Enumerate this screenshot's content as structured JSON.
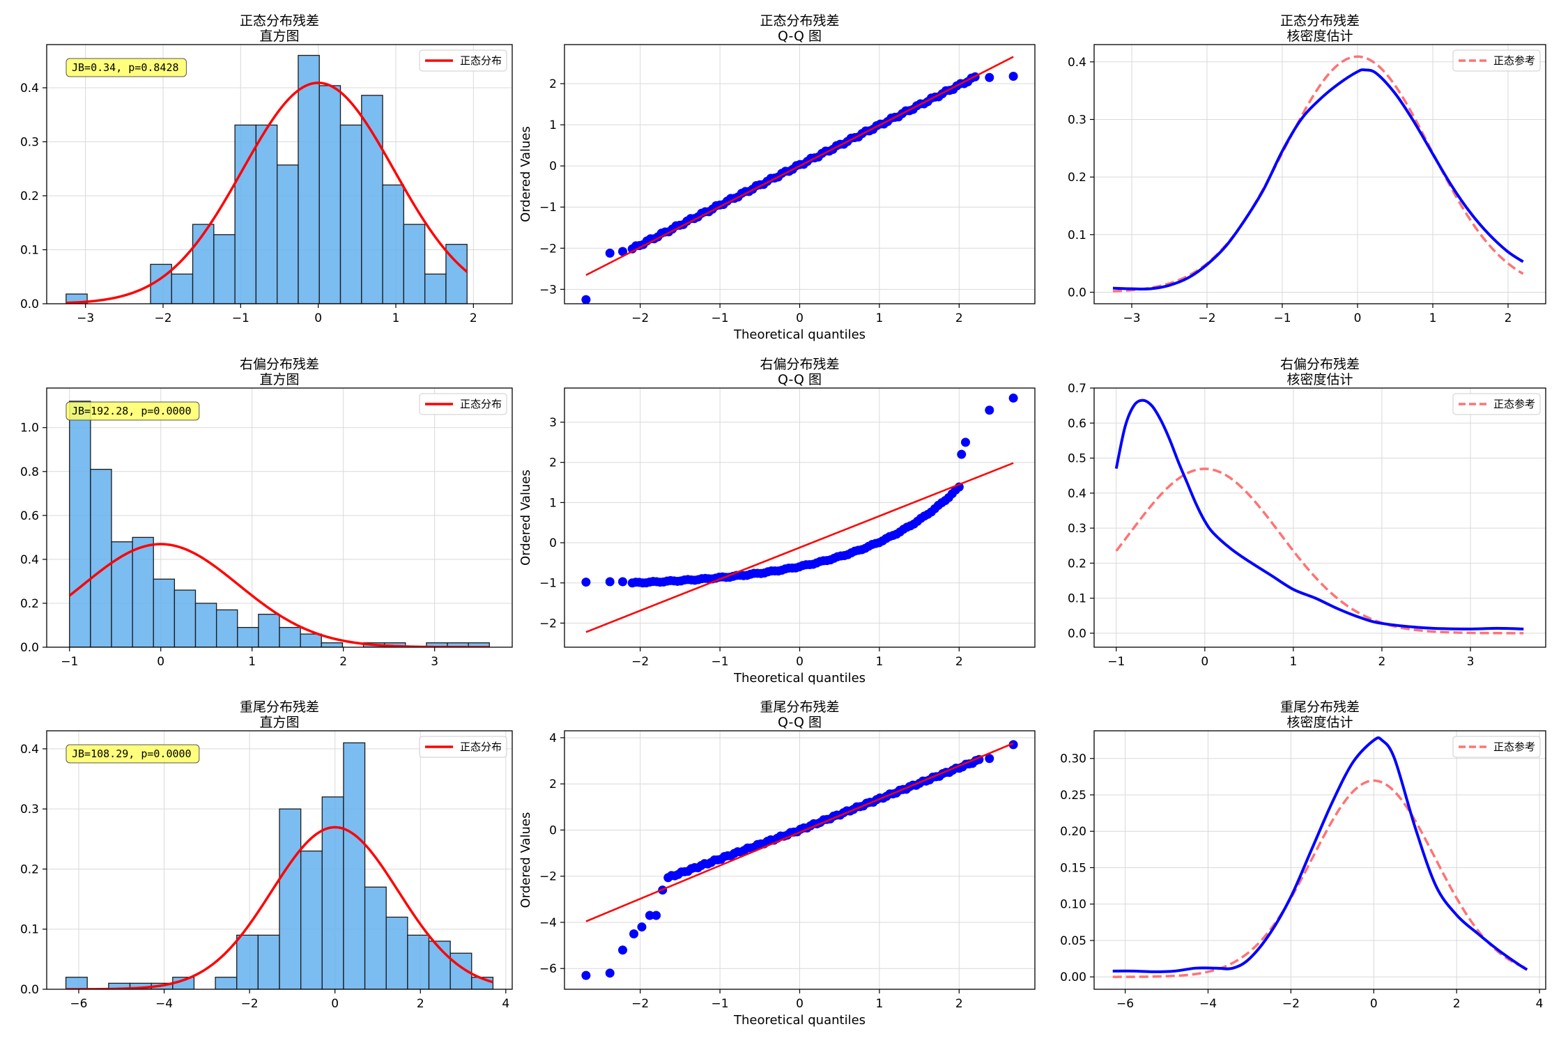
{
  "colors": {
    "hist_fill": "#64b0ee",
    "hist_edge": "#1a1a1a",
    "normal_curve": "#ff0000",
    "qq_points": "#0000ff",
    "qq_line": "#ff0000",
    "kde_line": "#0000ff",
    "normal_ref": "#ff7373",
    "annotation_fill": "#ffff66",
    "grid": "#d9d9d9"
  },
  "chart_data": [
    {
      "type": "bar",
      "title": "正态分布残差",
      "subtitle": "直方图",
      "xlim": [
        -3.5,
        2.5
      ],
      "ylim": [
        0,
        0.48
      ],
      "xticks": [
        -3,
        -2,
        -1,
        0,
        1,
        2
      ],
      "yticks": [
        0.0,
        0.1,
        0.2,
        0.3,
        0.4
      ],
      "bins": {
        "start": -3.25,
        "width": 0.272
      },
      "values": [
        0.018,
        0,
        0,
        0,
        0.073,
        0.055,
        0.147,
        0.128,
        0.331,
        0.331,
        0.257,
        0.46,
        0.404,
        0.331,
        0.386,
        0.22,
        0.147,
        0.055,
        0.11
      ],
      "curve": {
        "name": "正态分布",
        "mu": 0.0,
        "sigma": 0.975
      },
      "annotation": "JB=0.34, p=0.8428",
      "legend_position": "top-right",
      "grid": true
    },
    {
      "type": "scatter",
      "title": "正态分布残差",
      "subtitle": "Q-Q 图",
      "xlabel": "Theoretical quantiles",
      "ylabel": "Ordered Values",
      "xlim": [
        -2.95,
        2.95
      ],
      "ylim": [
        -3.35,
        2.95
      ],
      "xticks": [
        -2,
        -1,
        0,
        1,
        2
      ],
      "yticks": [
        -3,
        -2,
        -1,
        0,
        1,
        2
      ],
      "outliers": [
        [
          -2.68,
          -3.25
        ],
        [
          -2.38,
          -2.12
        ],
        [
          -2.22,
          -2.08
        ],
        [
          2.38,
          2.15
        ],
        [
          2.68,
          2.18
        ]
      ],
      "body": {
        "slope": 0.97,
        "intercept": 0.02,
        "x_range": [
          -2.1,
          2.2
        ]
      },
      "fit_line": {
        "slope": 0.99,
        "intercept": 0.0,
        "x_range": [
          -2.68,
          2.68
        ]
      },
      "grid": true
    },
    {
      "type": "line",
      "title": "正态分布残差",
      "subtitle": "核密度估计",
      "xlim": [
        -3.5,
        2.5
      ],
      "ylim": [
        -0.02,
        0.43
      ],
      "xticks": [
        -3,
        -2,
        -1,
        0,
        1,
        2
      ],
      "yticks": [
        0.0,
        0.1,
        0.2,
        0.3,
        0.4
      ],
      "kde": {
        "x": [
          -3.25,
          -3.0,
          -2.75,
          -2.5,
          -2.25,
          -2.0,
          -1.75,
          -1.5,
          -1.25,
          -1.0,
          -0.75,
          -0.5,
          -0.25,
          0.0,
          0.1,
          0.25,
          0.5,
          0.75,
          1.0,
          1.25,
          1.5,
          1.75,
          2.0,
          2.2
        ],
        "y": [
          0.007,
          0.006,
          0.006,
          0.012,
          0.025,
          0.048,
          0.08,
          0.125,
          0.178,
          0.245,
          0.3,
          0.335,
          0.362,
          0.383,
          0.386,
          0.38,
          0.345,
          0.296,
          0.24,
          0.185,
          0.138,
          0.1,
          0.07,
          0.053
        ]
      },
      "normal_ref": {
        "name": "正态参考",
        "mu": 0.0,
        "sigma": 0.975
      },
      "legend_position": "top-right",
      "grid": true
    },
    {
      "type": "bar",
      "title": "右偏分布残差",
      "subtitle": "直方图",
      "xlim": [
        -1.25,
        3.85
      ],
      "ylim": [
        0,
        1.18
      ],
      "xticks": [
        -1,
        0,
        1,
        2,
        3
      ],
      "yticks": [
        0.0,
        0.2,
        0.4,
        0.6,
        0.8,
        1.0
      ],
      "bins": {
        "start": -1.0,
        "width": 0.23
      },
      "values": [
        1.12,
        0.81,
        0.48,
        0.5,
        0.31,
        0.26,
        0.2,
        0.17,
        0.09,
        0.15,
        0.09,
        0.06,
        0.02,
        0.0,
        0.02,
        0.02,
        0.0,
        0.02,
        0.02,
        0.02
      ],
      "curve": {
        "name": "正态分布",
        "mu": 0.0,
        "sigma": 0.85
      },
      "annotation": "JB=192.28, p=0.0000",
      "legend_position": "top-right",
      "grid": true
    },
    {
      "type": "scatter",
      "title": "右偏分布残差",
      "subtitle": "Q-Q 图",
      "xlabel": "Theoretical quantiles",
      "ylabel": "Ordered Values",
      "xlim": [
        -2.95,
        2.95
      ],
      "ylim": [
        -2.6,
        3.85
      ],
      "xticks": [
        -2,
        -1,
        0,
        1,
        2
      ],
      "yticks": [
        -2,
        -1,
        0,
        1,
        2,
        3
      ],
      "points": [
        [
          -2.68,
          -0.98
        ],
        [
          -2.38,
          -0.97
        ],
        [
          -2.22,
          -0.97
        ],
        [
          2.03,
          2.2
        ],
        [
          2.08,
          2.5
        ],
        [
          2.38,
          3.3
        ],
        [
          2.68,
          3.6
        ]
      ],
      "body": {
        "model": "skewed",
        "x_range": [
          -2.1,
          2.0
        ]
      },
      "fit_line": {
        "slope": 0.785,
        "intercept": -0.12,
        "x_range": [
          -2.68,
          2.68
        ]
      },
      "grid": true
    },
    {
      "type": "line",
      "title": "右偏分布残差",
      "subtitle": "核密度估计",
      "xlim": [
        -1.25,
        3.85
      ],
      "ylim": [
        -0.04,
        0.7
      ],
      "xticks": [
        -1,
        0,
        1,
        2,
        3
      ],
      "yticks": [
        0.0,
        0.1,
        0.2,
        0.3,
        0.4,
        0.5,
        0.6,
        0.7
      ],
      "kde": {
        "x": [
          -1.0,
          -0.9,
          -0.8,
          -0.7,
          -0.6,
          -0.5,
          -0.4,
          -0.3,
          -0.2,
          -0.1,
          0.0,
          0.1,
          0.3,
          0.5,
          0.75,
          1.0,
          1.25,
          1.5,
          1.75,
          2.0,
          2.5,
          3.0,
          3.3,
          3.6
        ],
        "y": [
          0.47,
          0.59,
          0.65,
          0.665,
          0.65,
          0.61,
          0.555,
          0.49,
          0.43,
          0.37,
          0.32,
          0.285,
          0.24,
          0.205,
          0.165,
          0.125,
          0.1,
          0.07,
          0.045,
          0.028,
          0.015,
          0.012,
          0.014,
          0.012
        ]
      },
      "normal_ref": {
        "name": "正态参考",
        "mu": 0.0,
        "sigma": 0.85
      },
      "legend_position": "top-right",
      "grid": true
    },
    {
      "type": "bar",
      "title": "重尾分布残差",
      "subtitle": "直方图",
      "xlim": [
        -6.75,
        4.15
      ],
      "ylim": [
        0,
        0.43
      ],
      "xticks": [
        -6,
        -4,
        -2,
        0,
        2,
        4
      ],
      "yticks": [
        0.0,
        0.1,
        0.2,
        0.3,
        0.4
      ],
      "bins": {
        "start": -6.3,
        "width": 0.5
      },
      "values": [
        0.02,
        0,
        0.01,
        0.01,
        0.01,
        0.02,
        0,
        0.02,
        0.09,
        0.09,
        0.3,
        0.23,
        0.32,
        0.41,
        0.17,
        0.12,
        0.09,
        0.08,
        0.06,
        0.02
      ],
      "curve": {
        "name": "正态分布",
        "mu": 0.0,
        "sigma": 1.48
      },
      "annotation": "JB=108.29, p=0.0000",
      "legend_position": "top-right",
      "grid": true
    },
    {
      "type": "scatter",
      "title": "重尾分布残差",
      "subtitle": "Q-Q 图",
      "xlabel": "Theoretical quantiles",
      "ylabel": "Ordered Values",
      "xlim": [
        -2.95,
        2.95
      ],
      "ylim": [
        -6.9,
        4.3
      ],
      "xticks": [
        -2,
        -1,
        0,
        1,
        2
      ],
      "yticks": [
        -6,
        -4,
        -2,
        0,
        2,
        4
      ],
      "points": [
        [
          -2.68,
          -6.3
        ],
        [
          -2.38,
          -6.2
        ],
        [
          -2.22,
          -5.2
        ],
        [
          -2.08,
          -4.5
        ],
        [
          -1.98,
          -4.2
        ],
        [
          -1.88,
          -3.7
        ],
        [
          -1.8,
          -3.7
        ],
        [
          -1.72,
          -2.6
        ],
        [
          2.38,
          3.1
        ],
        [
          2.68,
          3.7
        ]
      ],
      "body": {
        "model": "heavy",
        "x_range": [
          -1.65,
          2.25
        ]
      },
      "fit_line": {
        "slope": 1.44,
        "intercept": -0.1,
        "x_range": [
          -2.68,
          2.68
        ]
      },
      "grid": true
    },
    {
      "type": "line",
      "title": "重尾分布残差",
      "subtitle": "核密度估计",
      "xlim": [
        -6.75,
        4.15
      ],
      "ylim": [
        -0.017,
        0.338
      ],
      "xticks": [
        -6,
        -4,
        -2,
        0,
        2,
        4
      ],
      "yticks": [
        0.0,
        0.05,
        0.1,
        0.15,
        0.2,
        0.25,
        0.3
      ],
      "kde": {
        "x": [
          -6.3,
          -5.8,
          -5.3,
          -4.8,
          -4.3,
          -3.8,
          -3.4,
          -3.0,
          -2.5,
          -2.0,
          -1.5,
          -1.0,
          -0.5,
          0.0,
          0.2,
          0.5,
          1.0,
          1.5,
          2.0,
          2.5,
          3.0,
          3.5,
          3.7
        ],
        "y": [
          0.008,
          0.008,
          0.007,
          0.008,
          0.012,
          0.012,
          0.012,
          0.025,
          0.06,
          0.11,
          0.175,
          0.24,
          0.295,
          0.325,
          0.325,
          0.3,
          0.205,
          0.125,
          0.085,
          0.06,
          0.037,
          0.017,
          0.01
        ]
      },
      "normal_ref": {
        "name": "正态参考",
        "mu": 0.0,
        "sigma": 1.48
      },
      "legend_position": "top-right",
      "grid": true
    }
  ]
}
